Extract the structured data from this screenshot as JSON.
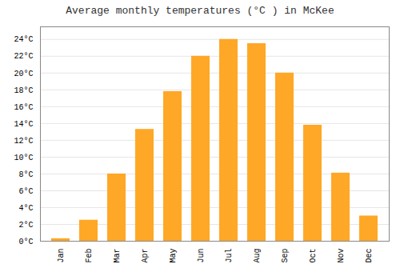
{
  "chart_data": {
    "type": "bar",
    "title": "Average monthly temperatures (°C ) in McKee",
    "categories": [
      "Jan",
      "Feb",
      "Mar",
      "Apr",
      "May",
      "Jun",
      "Jul",
      "Aug",
      "Sep",
      "Oct",
      "Nov",
      "Dec"
    ],
    "values": [
      0.3,
      2.5,
      8.0,
      13.3,
      17.8,
      22.0,
      24.0,
      23.5,
      20.0,
      13.8,
      8.1,
      3.0
    ],
    "color": "#FFA726",
    "ylim": [
      0,
      25.5
    ],
    "yticks": [
      {
        "value": 0,
        "label": "0°C"
      },
      {
        "value": 2,
        "label": "2°C"
      },
      {
        "value": 4,
        "label": "4°C"
      },
      {
        "value": 6,
        "label": "6°C"
      },
      {
        "value": 8,
        "label": "8°C"
      },
      {
        "value": 10,
        "label": "10°C"
      },
      {
        "value": 12,
        "label": "12°C"
      },
      {
        "value": 14,
        "label": "14°C"
      },
      {
        "value": 16,
        "label": "16°C"
      },
      {
        "value": 18,
        "label": "18°C"
      },
      {
        "value": 20,
        "label": "20°C"
      },
      {
        "value": 22,
        "label": "22°C"
      },
      {
        "value": 24,
        "label": "24°C"
      }
    ],
    "grid": true
  }
}
